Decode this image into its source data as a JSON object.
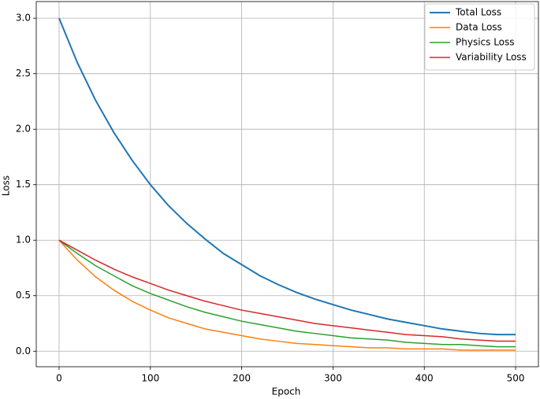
{
  "chart_data": {
    "type": "line",
    "xlabel": "Epoch",
    "ylabel": "Loss",
    "x": [
      0,
      20,
      40,
      60,
      80,
      100,
      120,
      140,
      160,
      180,
      200,
      220,
      240,
      260,
      280,
      300,
      320,
      340,
      360,
      380,
      400,
      420,
      440,
      460,
      480,
      500
    ],
    "series": [
      {
        "name": "Total Loss",
        "color": "#1f77b4",
        "values": [
          3.0,
          2.6,
          2.26,
          1.97,
          1.72,
          1.5,
          1.31,
          1.15,
          1.01,
          0.88,
          0.78,
          0.68,
          0.6,
          0.53,
          0.47,
          0.42,
          0.37,
          0.33,
          0.29,
          0.26,
          0.23,
          0.2,
          0.18,
          0.16,
          0.15,
          0.15
        ]
      },
      {
        "name": "Data Loss",
        "color": "#ff7f0e",
        "values": [
          1.0,
          0.82,
          0.67,
          0.55,
          0.45,
          0.37,
          0.3,
          0.25,
          0.2,
          0.17,
          0.14,
          0.11,
          0.09,
          0.07,
          0.06,
          0.05,
          0.04,
          0.03,
          0.03,
          0.02,
          0.02,
          0.02,
          0.01,
          0.01,
          0.01,
          0.01
        ]
      },
      {
        "name": "Physics Loss",
        "color": "#2ca02c",
        "values": [
          1.0,
          0.88,
          0.77,
          0.68,
          0.59,
          0.52,
          0.46,
          0.4,
          0.35,
          0.31,
          0.27,
          0.24,
          0.21,
          0.18,
          0.16,
          0.14,
          0.12,
          0.11,
          0.1,
          0.08,
          0.07,
          0.06,
          0.06,
          0.05,
          0.04,
          0.04
        ]
      },
      {
        "name": "Variability Loss",
        "color": "#d62728",
        "values": [
          1.0,
          0.91,
          0.82,
          0.74,
          0.67,
          0.61,
          0.55,
          0.5,
          0.45,
          0.41,
          0.37,
          0.34,
          0.31,
          0.28,
          0.25,
          0.23,
          0.21,
          0.19,
          0.17,
          0.15,
          0.14,
          0.13,
          0.11,
          0.1,
          0.09,
          0.09
        ]
      }
    ],
    "xlim": [
      -25,
      525
    ],
    "xticks": [
      0,
      100,
      200,
      300,
      400,
      500
    ],
    "ylim": [
      -0.14,
      3.15
    ],
    "yticks": [
      {
        "value": 0,
        "label": "0.0"
      },
      {
        "value": 0.5,
        "label": "0.5"
      },
      {
        "value": 1,
        "label": "1.0"
      },
      {
        "value": 1.5,
        "label": "1.5"
      },
      {
        "value": 2,
        "label": "2.0"
      },
      {
        "value": 2.5,
        "label": "2.5"
      },
      {
        "value": 3,
        "label": "3.0"
      }
    ],
    "grid": true,
    "legend": "upper right"
  }
}
